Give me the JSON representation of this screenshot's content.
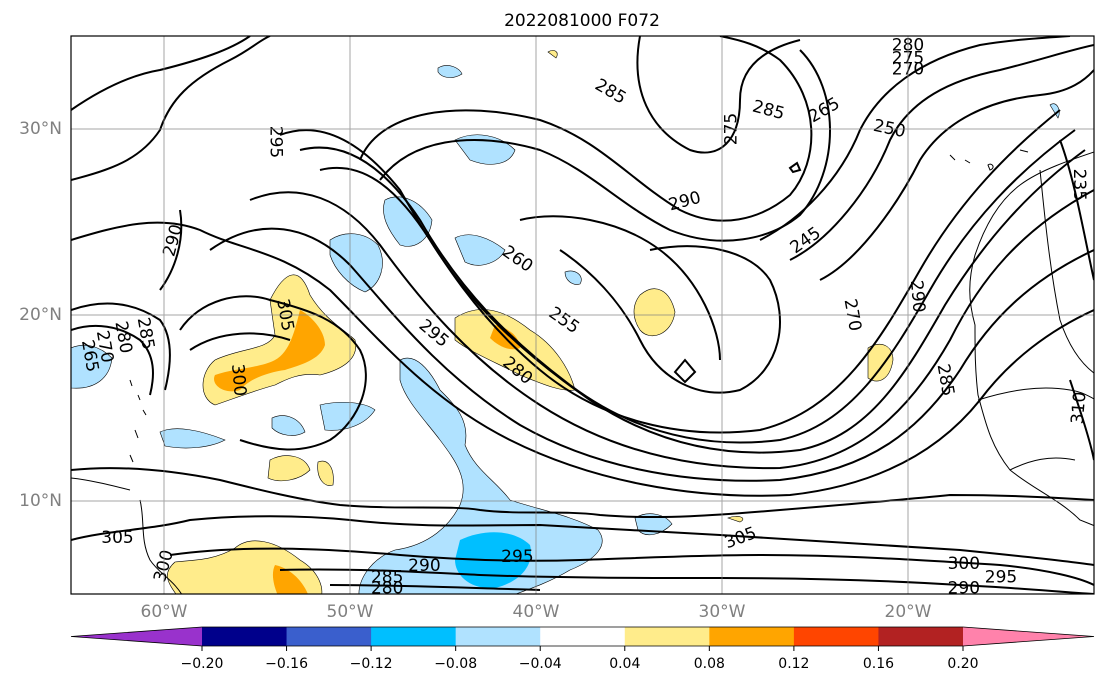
{
  "figure": {
    "title": "2022081000 F072"
  },
  "map": {
    "lon_range": [
      -65,
      -10
    ],
    "lat_range": [
      5,
      35
    ],
    "gridlines": true,
    "lon_labels": [
      "60°W",
      "50°W",
      "40°W",
      "30°W",
      "20°W"
    ],
    "lon_ticks": [
      -60,
      -50,
      -40,
      -30,
      -20
    ],
    "lat_labels": [
      "10°N",
      "20°N",
      "30°N"
    ],
    "lat_ticks": [
      10,
      20,
      30
    ],
    "contour_variable_units": "contour labels (black lines)",
    "contour_labels": [
      {
        "text": "295",
        "lon": -54.0,
        "lat": 29.3,
        "rot": 90
      },
      {
        "text": "290",
        "lon": -59.5,
        "lat": 24.0,
        "rot": -75
      },
      {
        "text": "285",
        "lon": -36.0,
        "lat": 32.0,
        "rot": 30
      },
      {
        "text": "285",
        "lon": -27.5,
        "lat": 31.0,
        "rot": 15
      },
      {
        "text": "275",
        "lon": -29.5,
        "lat": 30.0,
        "rot": -90
      },
      {
        "text": "265",
        "lon": -24.5,
        "lat": 31.0,
        "rot": -30
      },
      {
        "text": "250",
        "lon": -21.0,
        "lat": 30.0,
        "rot": 12
      },
      {
        "text": "280",
        "lon": -20.0,
        "lat": 34.5,
        "rot": 0
      },
      {
        "text": "275",
        "lon": -20.0,
        "lat": 33.8,
        "rot": 0
      },
      {
        "text": "270",
        "lon": -20.0,
        "lat": 33.2,
        "rot": 0
      },
      {
        "text": "290",
        "lon": -32.0,
        "lat": 26.1,
        "rot": -15
      },
      {
        "text": "245",
        "lon": -25.5,
        "lat": 24.0,
        "rot": -35
      },
      {
        "text": "260",
        "lon": -41.0,
        "lat": 23.0,
        "rot": 35
      },
      {
        "text": "255",
        "lon": -38.5,
        "lat": 19.7,
        "rot": 35
      },
      {
        "text": "295",
        "lon": -45.5,
        "lat": 19.0,
        "rot": 40
      },
      {
        "text": "280",
        "lon": -41.0,
        "lat": 17.0,
        "rot": 40
      },
      {
        "text": "305",
        "lon": -53.5,
        "lat": 20.0,
        "rot": 80
      },
      {
        "text": "300",
        "lon": -56.0,
        "lat": 16.5,
        "rot": 85
      },
      {
        "text": "270",
        "lon": -23.0,
        "lat": 20.0,
        "rot": 80
      },
      {
        "text": "290",
        "lon": -19.5,
        "lat": 21.0,
        "rot": 85
      },
      {
        "text": "285",
        "lon": -18.0,
        "lat": 16.5,
        "rot": 80
      },
      {
        "text": "235",
        "lon": -10.8,
        "lat": 27.0,
        "rot": 90
      },
      {
        "text": "310",
        "lon": -10.8,
        "lat": 15.0,
        "rot": -85
      },
      {
        "text": "305",
        "lon": -62.5,
        "lat": 8.0,
        "rot": 0
      },
      {
        "text": "300",
        "lon": -60.0,
        "lat": 6.5,
        "rot": -75
      },
      {
        "text": "305",
        "lon": -29.0,
        "lat": 8.0,
        "rot": -20
      },
      {
        "text": "290",
        "lon": -46.0,
        "lat": 6.5,
        "rot": 0
      },
      {
        "text": "295",
        "lon": -41.0,
        "lat": 7.0,
        "rot": 0
      },
      {
        "text": "285",
        "lon": -48.0,
        "lat": 5.9,
        "rot": 0
      },
      {
        "text": "280",
        "lon": -48.0,
        "lat": 5.3,
        "rot": 0
      },
      {
        "text": "300",
        "lon": -17.0,
        "lat": 6.6,
        "rot": 0
      },
      {
        "text": "295",
        "lon": -15.0,
        "lat": 5.9,
        "rot": 0
      },
      {
        "text": "290",
        "lon": -17.0,
        "lat": 5.3,
        "rot": 0
      },
      {
        "text": "265",
        "lon": -64.0,
        "lat": 17.8,
        "rot": 80
      },
      {
        "text": "270",
        "lon": -63.2,
        "lat": 18.3,
        "rot": 80
      },
      {
        "text": "280",
        "lon": -62.2,
        "lat": 18.8,
        "rot": 80
      },
      {
        "text": "285",
        "lon": -61.0,
        "lat": 19.0,
        "rot": 80
      }
    ],
    "shading_colors": {
      "-0.20_to_-0.16": "#00008b",
      "-0.16_to_-0.12": "#3a5fcd",
      "-0.12_to_-0.08": "#00bfff",
      "-0.08_to_-0.04": "#b0e2ff",
      "0.04_to_0.08": "#ffec8b",
      "0.08_to_0.12": "#ffa500",
      "0.12_to_0.16": "#ff4500",
      "0.16_to_0.20": "#b22222",
      "above_0.20": "#ff82ab",
      "below_-0.20": "#9932cc"
    }
  },
  "colorbar": {
    "tick_labels": [
      "−0.20",
      "−0.16",
      "−0.12",
      "−0.08",
      "−0.04",
      "0.04",
      "0.08",
      "0.12",
      "0.16",
      "0.20"
    ],
    "colors": [
      "#9932cc",
      "#00008b",
      "#3a5fcd",
      "#00bfff",
      "#b0e2ff",
      "#ffffff",
      "#ffec8b",
      "#ffa500",
      "#ff4500",
      "#b22222",
      "#ff82ab"
    ],
    "extend": "both"
  }
}
